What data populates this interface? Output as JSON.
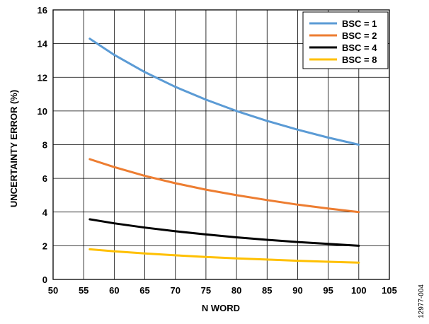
{
  "figure_id": "12977-004",
  "chart_data": {
    "type": "line",
    "title": "",
    "xlabel": "N WORD",
    "ylabel": "UNCERTAINTY ERROR (%)",
    "xlim": [
      50,
      105
    ],
    "ylim": [
      0,
      16
    ],
    "xticks": [
      50,
      55,
      60,
      65,
      70,
      75,
      80,
      85,
      90,
      95,
      100,
      105
    ],
    "yticks": [
      0,
      2,
      4,
      6,
      8,
      10,
      12,
      14,
      16
    ],
    "grid": true,
    "legend_position": "top-right",
    "x": [
      56,
      60,
      65,
      70,
      75,
      80,
      85,
      90,
      95,
      100
    ],
    "series": [
      {
        "name": "BSC = 1",
        "color": "#5b9bd5",
        "values": [
          14.29,
          13.33,
          12.31,
          11.43,
          10.67,
          10.0,
          9.41,
          8.89,
          8.42,
          8.0
        ]
      },
      {
        "name": "BSC = 2",
        "color": "#ed7d31",
        "values": [
          7.14,
          6.67,
          6.15,
          5.71,
          5.33,
          5.0,
          4.71,
          4.44,
          4.21,
          4.0
        ]
      },
      {
        "name": "BSC = 4",
        "color": "#000000",
        "values": [
          3.57,
          3.33,
          3.08,
          2.86,
          2.67,
          2.5,
          2.35,
          2.22,
          2.11,
          2.0
        ]
      },
      {
        "name": "BSC = 8",
        "color": "#ffc000",
        "values": [
          1.79,
          1.67,
          1.54,
          1.43,
          1.33,
          1.25,
          1.18,
          1.11,
          1.05,
          1.0
        ]
      }
    ]
  }
}
